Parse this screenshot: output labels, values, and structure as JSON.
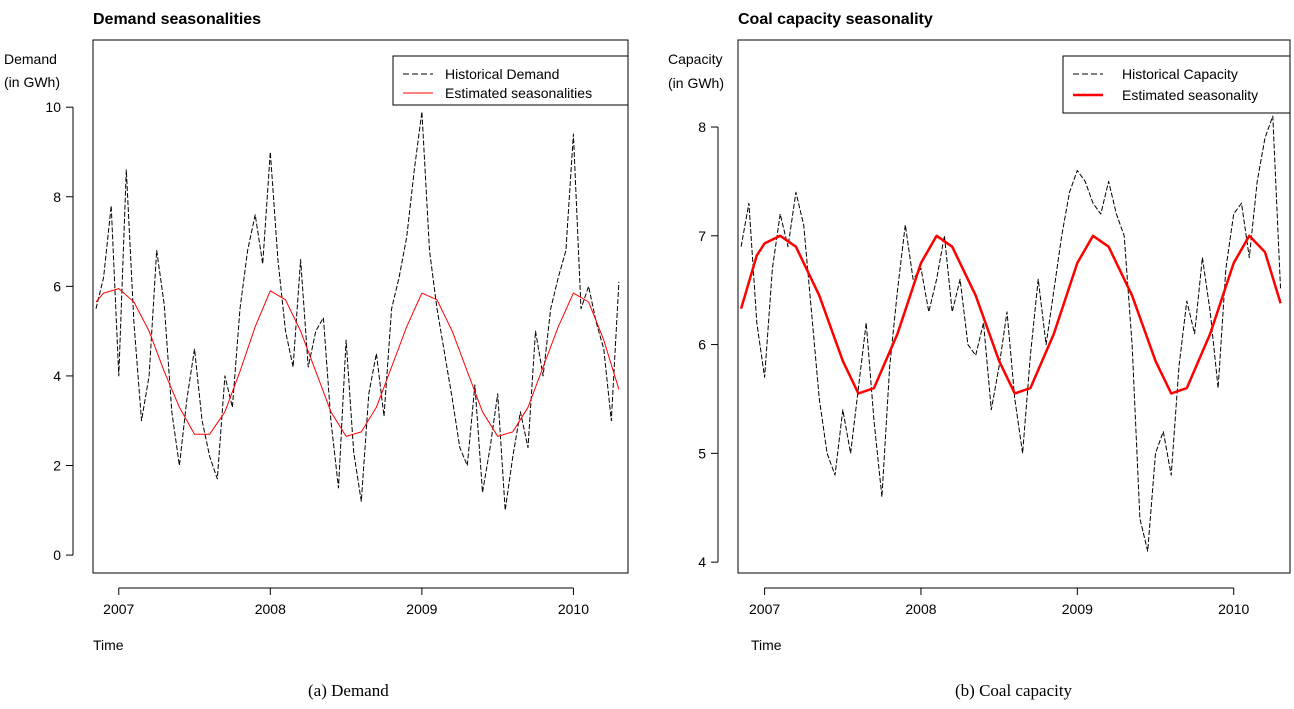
{
  "chart_data": [
    {
      "type": "line",
      "title": "Demand seasonalities",
      "ylabel": [
        "Demand",
        "(in GWh)"
      ],
      "xlabel": "Time",
      "caption": "(a) Demand",
      "xlim": [
        2006.83,
        2010.36
      ],
      "ylim": [
        -0.4,
        11.5
      ],
      "xticks": [
        2007,
        2008,
        2009,
        2010
      ],
      "xtick_labels": [
        "2007",
        "2008",
        "2009",
        "2010"
      ],
      "yticks": [
        0,
        2,
        4,
        6,
        8,
        10
      ],
      "ytick_labels": [
        "0",
        "2",
        "4",
        "6",
        "8",
        "10"
      ],
      "legend": {
        "placement": "top-right",
        "entries": [
          "Historical Demand",
          "Estimated seasonalities"
        ]
      },
      "series": [
        {
          "name": "Historical Demand",
          "style": "dashed",
          "color": "#000000",
          "x": [
            2006.85,
            2006.9,
            2006.95,
            2007.0,
            2007.05,
            2007.1,
            2007.15,
            2007.2,
            2007.25,
            2007.3,
            2007.35,
            2007.4,
            2007.45,
            2007.5,
            2007.55,
            2007.6,
            2007.65,
            2007.7,
            2007.75,
            2007.8,
            2007.85,
            2007.9,
            2007.95,
            2008.0,
            2008.05,
            2008.1,
            2008.15,
            2008.2,
            2008.25,
            2008.3,
            2008.35,
            2008.4,
            2008.45,
            2008.5,
            2008.55,
            2008.6,
            2008.65,
            2008.7,
            2008.75,
            2008.8,
            2008.85,
            2008.9,
            2008.95,
            2009.0,
            2009.05,
            2009.1,
            2009.15,
            2009.2,
            2009.25,
            2009.3,
            2009.35,
            2009.4,
            2009.45,
            2009.5,
            2009.55,
            2009.6,
            2009.65,
            2009.7,
            2009.75,
            2009.8,
            2009.85,
            2009.9,
            2009.95,
            2010.0,
            2010.05,
            2010.1,
            2010.15,
            2010.2,
            2010.25,
            2010.3
          ],
          "y": [
            5.5,
            6.2,
            7.8,
            4.0,
            8.6,
            5.2,
            3.0,
            4.0,
            6.8,
            5.6,
            3.2,
            2.0,
            3.5,
            4.6,
            3.0,
            2.2,
            1.7,
            4.0,
            3.3,
            5.5,
            6.8,
            7.6,
            6.5,
            9.0,
            6.6,
            5.0,
            4.2,
            6.6,
            4.2,
            5.0,
            5.3,
            3.0,
            1.5,
            4.8,
            2.3,
            1.2,
            3.6,
            4.5,
            3.1,
            5.5,
            6.2,
            7.1,
            8.6,
            9.9,
            6.8,
            5.5,
            4.5,
            3.5,
            2.4,
            2.0,
            3.8,
            1.4,
            2.4,
            3.6,
            1.0,
            2.2,
            3.2,
            2.4,
            5.0,
            4.0,
            5.5,
            6.2,
            6.8,
            9.4,
            5.5,
            6.0,
            5.2,
            4.6,
            3.0,
            6.1
          ]
        },
        {
          "name": "Estimated seasonalities",
          "style": "solid",
          "color": "#ff0000",
          "x": [
            2006.85,
            2006.9,
            2007.0,
            2007.1,
            2007.2,
            2007.3,
            2007.4,
            2007.5,
            2007.6,
            2007.7,
            2007.8,
            2007.9,
            2008.0,
            2008.1,
            2008.2,
            2008.3,
            2008.4,
            2008.5,
            2008.6,
            2008.7,
            2008.8,
            2008.9,
            2009.0,
            2009.1,
            2009.2,
            2009.3,
            2009.4,
            2009.5,
            2009.6,
            2009.7,
            2009.8,
            2009.9,
            2010.0,
            2010.1,
            2010.2,
            2010.3
          ],
          "y": [
            5.65,
            5.85,
            5.95,
            5.65,
            5.0,
            4.1,
            3.3,
            2.7,
            2.7,
            3.2,
            4.1,
            5.1,
            5.9,
            5.7,
            5.0,
            4.1,
            3.2,
            2.65,
            2.75,
            3.3,
            4.2,
            5.1,
            5.85,
            5.7,
            5.0,
            4.1,
            3.2,
            2.65,
            2.75,
            3.3,
            4.2,
            5.1,
            5.85,
            5.65,
            4.8,
            3.7
          ]
        }
      ]
    },
    {
      "type": "line",
      "title": "Coal capacity seasonality",
      "ylabel": [
        "Capacity",
        "(in GWh)"
      ],
      "xlabel": "Time",
      "caption": "(b) Coal capacity",
      "xlim": [
        2006.83,
        2010.36
      ],
      "ylim": [
        3.9,
        8.8
      ],
      "xticks": [
        2007,
        2008,
        2009,
        2010
      ],
      "xtick_labels": [
        "2007",
        "2008",
        "2009",
        "2010"
      ],
      "yticks": [
        4,
        5,
        6,
        7,
        8
      ],
      "ytick_labels": [
        "4",
        "5",
        "6",
        "7",
        "8"
      ],
      "legend": {
        "placement": "top-right",
        "entries": [
          "Historical Capacity",
          "Estimated seasonality"
        ]
      },
      "series": [
        {
          "name": "Historical Capacity",
          "style": "dashed",
          "color": "#000000",
          "x": [
            2006.85,
            2006.9,
            2006.95,
            2007.0,
            2007.05,
            2007.1,
            2007.15,
            2007.2,
            2007.25,
            2007.3,
            2007.35,
            2007.4,
            2007.45,
            2007.5,
            2007.55,
            2007.6,
            2007.65,
            2007.7,
            2007.75,
            2007.8,
            2007.85,
            2007.9,
            2007.95,
            2008.0,
            2008.05,
            2008.1,
            2008.15,
            2008.2,
            2008.25,
            2008.3,
            2008.35,
            2008.4,
            2008.45,
            2008.5,
            2008.55,
            2008.6,
            2008.65,
            2008.7,
            2008.75,
            2008.8,
            2008.85,
            2008.9,
            2008.95,
            2009.0,
            2009.05,
            2009.1,
            2009.15,
            2009.2,
            2009.25,
            2009.3,
            2009.35,
            2009.4,
            2009.45,
            2009.5,
            2009.55,
            2009.6,
            2009.65,
            2009.7,
            2009.75,
            2009.8,
            2009.85,
            2009.9,
            2009.95,
            2010.0,
            2010.05,
            2010.1,
            2010.15,
            2010.2,
            2010.25,
            2010.3
          ],
          "y": [
            6.9,
            7.3,
            6.2,
            5.7,
            6.7,
            7.2,
            6.9,
            7.4,
            7.1,
            6.3,
            5.5,
            5.0,
            4.8,
            5.4,
            5.0,
            5.6,
            6.2,
            5.3,
            4.6,
            5.8,
            6.5,
            7.1,
            6.6,
            6.7,
            6.3,
            6.6,
            7.0,
            6.3,
            6.6,
            6.0,
            5.9,
            6.2,
            5.4,
            5.8,
            6.3,
            5.5,
            5.0,
            5.9,
            6.6,
            6.0,
            6.5,
            7.0,
            7.4,
            7.6,
            7.5,
            7.3,
            7.2,
            7.5,
            7.2,
            7.0,
            6.0,
            4.4,
            4.1,
            5.0,
            5.2,
            4.8,
            5.8,
            6.4,
            6.1,
            6.8,
            6.3,
            5.6,
            6.7,
            7.2,
            7.3,
            6.8,
            7.5,
            7.9,
            8.1,
            6.5
          ]
        },
        {
          "name": "Estimated seasonality",
          "style": "solid",
          "color": "#ff0000",
          "x": [
            2006.85,
            2006.95,
            2007.0,
            2007.1,
            2007.2,
            2007.35,
            2007.5,
            2007.6,
            2007.7,
            2007.85,
            2008.0,
            2008.1,
            2008.2,
            2008.35,
            2008.5,
            2008.6,
            2008.7,
            2008.85,
            2009.0,
            2009.1,
            2009.2,
            2009.35,
            2009.5,
            2009.6,
            2009.7,
            2009.85,
            2010.0,
            2010.1,
            2010.2,
            2010.3
          ],
          "y": [
            6.33,
            6.82,
            6.93,
            7.0,
            6.9,
            6.45,
            5.85,
            5.55,
            5.6,
            6.1,
            6.75,
            7.0,
            6.9,
            6.45,
            5.85,
            5.55,
            5.6,
            6.1,
            6.75,
            7.0,
            6.9,
            6.45,
            5.85,
            5.55,
            5.6,
            6.1,
            6.75,
            7.0,
            6.85,
            6.38
          ]
        }
      ]
    }
  ]
}
